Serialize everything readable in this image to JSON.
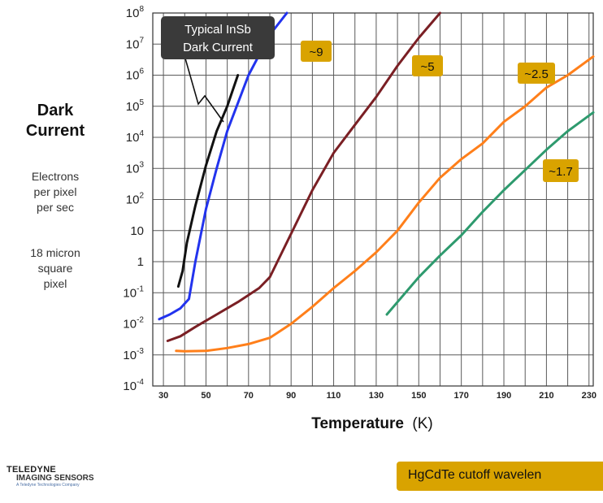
{
  "ylabel": {
    "title_line1": "Dark",
    "title_line2": "Current",
    "units": [
      "Electrons",
      "per pixel",
      "per sec"
    ],
    "pixel_note": [
      "18 micron",
      "square",
      "pixel"
    ]
  },
  "footer": {
    "logo_line1": "TELEDYNE",
    "logo_line2": "IMAGING SENSORS",
    "logo_line3": "A Teledyne Technologies Company",
    "legend_text": "HgCdTe cutoff wavelen"
  },
  "colors": {
    "accent_label": "#d9a300",
    "callout_bg": "#3a3a3a"
  },
  "chart_data": {
    "type": "line",
    "title": "",
    "xlabel": "Temperature",
    "xlabel_unit": "(K)",
    "ylabel": "Dark Current",
    "y_scale": "log",
    "xlim": [
      25,
      232
    ],
    "ylim_exp": [
      -4,
      8
    ],
    "x_ticks": [
      30,
      50,
      70,
      90,
      110,
      130,
      150,
      170,
      190,
      210,
      230
    ],
    "y_ticks": [
      {
        "exp": -4,
        "base": "10",
        "sup": "-4"
      },
      {
        "exp": -3,
        "base": "10",
        "sup": "-3"
      },
      {
        "exp": -2,
        "base": "10",
        "sup": "-2"
      },
      {
        "exp": -1,
        "base": "10",
        "sup": "-1"
      },
      {
        "exp": 0,
        "base": "1",
        "sup": ""
      },
      {
        "exp": 1,
        "base": "10",
        "sup": ""
      },
      {
        "exp": 2,
        "base": "10",
        "sup": "2"
      },
      {
        "exp": 3,
        "base": "10",
        "sup": "3"
      },
      {
        "exp": 4,
        "base": "10",
        "sup": "4"
      },
      {
        "exp": 5,
        "base": "10",
        "sup": "5"
      },
      {
        "exp": 6,
        "base": "10",
        "sup": "6"
      },
      {
        "exp": 7,
        "base": "10",
        "sup": "7"
      },
      {
        "exp": 8,
        "base": "10",
        "sup": "8"
      }
    ],
    "grid": true,
    "series": [
      {
        "name": "Typical InSb Dark Current",
        "color": "#111111",
        "points": [
          [
            37,
            -0.8
          ],
          [
            39,
            -0.3
          ],
          [
            41,
            0.6
          ],
          [
            45,
            1.8
          ],
          [
            50,
            3.1
          ],
          [
            55,
            4.2
          ],
          [
            60,
            5.0
          ],
          [
            65,
            6.0
          ]
        ]
      },
      {
        "name": "~9",
        "color": "#2233ee",
        "points": [
          [
            28,
            -1.85
          ],
          [
            33,
            -1.7
          ],
          [
            38,
            -1.5
          ],
          [
            42,
            -1.2
          ],
          [
            45,
            0
          ],
          [
            50,
            1.7
          ],
          [
            55,
            3.0
          ],
          [
            60,
            4.2
          ],
          [
            70,
            6.0
          ],
          [
            80,
            7.3
          ],
          [
            88,
            8.0
          ]
        ]
      },
      {
        "name": "~5",
        "color": "#7a1f24",
        "points": [
          [
            32,
            -2.55
          ],
          [
            38,
            -2.4
          ],
          [
            45,
            -2.1
          ],
          [
            55,
            -1.7
          ],
          [
            65,
            -1.3
          ],
          [
            75,
            -0.85
          ],
          [
            80,
            -0.5
          ],
          [
            90,
            0.9
          ],
          [
            100,
            2.3
          ],
          [
            110,
            3.5
          ],
          [
            120,
            4.4
          ],
          [
            130,
            5.3
          ],
          [
            140,
            6.3
          ],
          [
            150,
            7.2
          ],
          [
            160,
            8.0
          ]
        ]
      },
      {
        "name": "~2.5",
        "color": "#ff7f1a",
        "points": [
          [
            36,
            -2.87
          ],
          [
            40,
            -2.88
          ],
          [
            50,
            -2.87
          ],
          [
            60,
            -2.78
          ],
          [
            70,
            -2.65
          ],
          [
            80,
            -2.45
          ],
          [
            90,
            -2.0
          ],
          [
            100,
            -1.45
          ],
          [
            110,
            -0.85
          ],
          [
            120,
            -0.3
          ],
          [
            130,
            0.3
          ],
          [
            140,
            1.0
          ],
          [
            150,
            1.9
          ],
          [
            160,
            2.7
          ],
          [
            170,
            3.3
          ],
          [
            180,
            3.8
          ],
          [
            190,
            4.5
          ],
          [
            200,
            5.0
          ],
          [
            210,
            5.6
          ],
          [
            220,
            6.0
          ],
          [
            232,
            6.6
          ]
        ]
      },
      {
        "name": "~1.7",
        "color": "#2e9a6e",
        "points": [
          [
            135,
            -1.7
          ],
          [
            140,
            -1.3
          ],
          [
            150,
            -0.5
          ],
          [
            160,
            0.2
          ],
          [
            170,
            0.85
          ],
          [
            180,
            1.6
          ],
          [
            190,
            2.3
          ],
          [
            200,
            2.95
          ],
          [
            210,
            3.6
          ],
          [
            220,
            4.2
          ],
          [
            232,
            4.8
          ]
        ]
      }
    ],
    "annotations": [
      {
        "text": "~9",
        "series": "~9"
      },
      {
        "text": "~5",
        "series": "~5"
      },
      {
        "text": "~2.5",
        "series": "~2.5"
      },
      {
        "text": "~1.7",
        "series": "~1.7"
      }
    ],
    "callout": {
      "line1": "Typical InSb",
      "line2": "Dark Current"
    }
  }
}
